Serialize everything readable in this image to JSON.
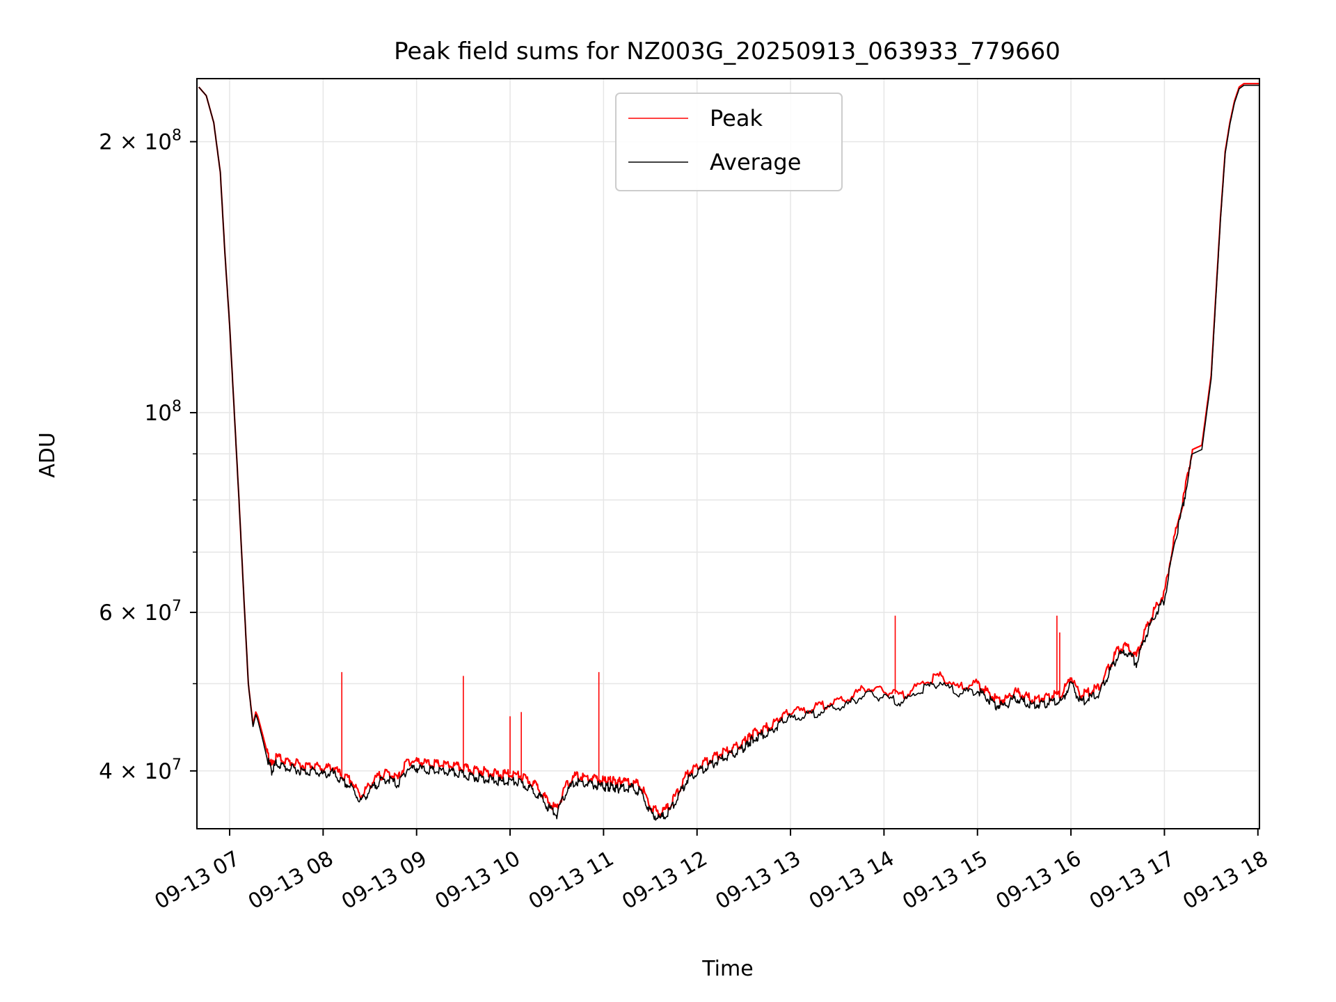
{
  "chart_data": {
    "type": "line",
    "title": "Peak field sums for NZ003G_20250913_063933_779660",
    "xlabel": "Time",
    "ylabel": "ADU",
    "y_scale": "log",
    "ylim": [
      34500000,
      235000000
    ],
    "xlim": [
      "09-13 06:39",
      "09-13 18:01"
    ],
    "grid": true,
    "legend_position": "upper center",
    "x_tick_labels": [
      "09-13 07",
      "09-13 08",
      "09-13 09",
      "09-13 10",
      "09-13 11",
      "09-13 12",
      "09-13 13",
      "09-13 14",
      "09-13 15",
      "09-13 16",
      "09-13 17",
      "09-13 18"
    ],
    "x_tick_hours": [
      7,
      8,
      9,
      10,
      11,
      12,
      13,
      14,
      15,
      16,
      17,
      18
    ],
    "y_tick_labels": [
      {
        "value": 40000000,
        "mantissa": "4",
        "exp": "7"
      },
      {
        "value": 60000000,
        "mantissa": "6",
        "exp": "7"
      },
      {
        "value": 100000000,
        "mantissa": "",
        "exp": "8"
      },
      {
        "value": 200000000,
        "mantissa": "2",
        "exp": "8"
      }
    ],
    "y_minor_ticks": [
      50000000,
      70000000,
      80000000,
      90000000
    ],
    "series": [
      {
        "name": "Peak",
        "color": "#ff0000",
        "x_hours": [
          6.67,
          6.75,
          6.83,
          6.9,
          6.95,
          7.0,
          7.05,
          7.1,
          7.15,
          7.2,
          7.25,
          7.28,
          7.3,
          7.35,
          7.4,
          7.45,
          7.5,
          7.6,
          7.7,
          7.8,
          7.9,
          8.0,
          8.1,
          8.2,
          8.3,
          8.4,
          8.5,
          8.6,
          8.7,
          8.8,
          8.9,
          9.0,
          9.1,
          9.2,
          9.3,
          9.4,
          9.5,
          9.6,
          9.7,
          9.8,
          9.9,
          10.0,
          10.1,
          10.2,
          10.3,
          10.4,
          10.5,
          10.6,
          10.7,
          10.8,
          10.9,
          11.0,
          11.05,
          11.1,
          11.15,
          11.2,
          11.3,
          11.4,
          11.5,
          11.6,
          11.7,
          11.8,
          11.9,
          12.0,
          12.1,
          12.2,
          12.3,
          12.4,
          12.5,
          12.55,
          12.6,
          12.7,
          12.8,
          12.9,
          13.0,
          13.2,
          13.4,
          13.6,
          13.8,
          14.0,
          14.2,
          14.4,
          14.6,
          14.8,
          15.0,
          15.1,
          15.2,
          15.3,
          15.4,
          15.5,
          15.6,
          15.7,
          15.8,
          15.9,
          16.0,
          16.1,
          16.2,
          16.3,
          16.4,
          16.5,
          16.6,
          16.7,
          16.8,
          16.9,
          17.0,
          17.1,
          17.2,
          17.3,
          17.4,
          17.5,
          17.55,
          17.6,
          17.65,
          17.7,
          17.75,
          17.8,
          17.85,
          17.9,
          17.95,
          18.0,
          18.02
        ],
        "values": [
          230000000,
          225000000,
          210000000,
          185000000,
          150000000,
          125000000,
          100000000,
          80000000,
          63000000,
          50000000,
          45000000,
          46500000,
          46000000,
          44000000,
          42000000,
          40500000,
          41500000,
          41000000,
          40800000,
          40500000,
          40600000,
          40200000,
          40400000,
          39500000,
          39000000,
          37500000,
          38600000,
          39500000,
          39800000,
          39200000,
          41000000,
          41000000,
          40800000,
          40700000,
          40600000,
          40500000,
          40300000,
          40100000,
          40000000,
          39800000,
          39600000,
          39700000,
          39500000,
          39000000,
          38400000,
          37000000,
          36300000,
          38500000,
          39500000,
          39300000,
          39200000,
          39000000,
          39000000,
          39000000,
          38800000,
          39000000,
          38900000,
          38500000,
          36500000,
          35900000,
          36500000,
          38000000,
          39800000,
          40500000,
          41000000,
          41500000,
          42000000,
          42400000,
          43000000,
          43600000,
          44000000,
          44500000,
          45000000,
          46000000,
          46500000,
          46800000,
          47500000,
          48000000,
          49500000,
          49000000,
          48500000,
          50000000,
          51000000,
          49500000,
          50000000,
          49000000,
          48000000,
          48000000,
          49000000,
          48500000,
          48000000,
          48200000,
          48500000,
          48600000,
          51000000,
          48500000,
          49000000,
          49500000,
          52000000,
          54500000,
          55000000,
          53500000,
          57500000,
          60500000,
          63000000,
          72000000,
          80000000,
          91000000,
          92000000,
          110000000,
          135000000,
          165000000,
          195000000,
          210000000,
          222000000,
          230000000,
          232000000,
          232000000,
          232000000,
          232000000,
          232000000
        ],
        "spikes": [
          {
            "x_hour": 8.2,
            "value": 51500000
          },
          {
            "x_hour": 9.5,
            "value": 51000000
          },
          {
            "x_hour": 10.0,
            "value": 46000000
          },
          {
            "x_hour": 10.12,
            "value": 46500000
          },
          {
            "x_hour": 10.95,
            "value": 51500000
          },
          {
            "x_hour": 14.12,
            "value": 59500000
          },
          {
            "x_hour": 15.85,
            "value": 59500000
          },
          {
            "x_hour": 15.88,
            "value": 57000000
          }
        ]
      },
      {
        "name": "Average",
        "color": "#000000",
        "x_hours": [
          6.67,
          6.75,
          6.83,
          6.9,
          6.95,
          7.0,
          7.05,
          7.1,
          7.15,
          7.2,
          7.25,
          7.28,
          7.3,
          7.35,
          7.4,
          7.45,
          7.5,
          7.6,
          7.7,
          7.8,
          7.9,
          8.0,
          8.1,
          8.2,
          8.3,
          8.4,
          8.5,
          8.6,
          8.7,
          8.8,
          8.9,
          9.0,
          9.1,
          9.2,
          9.3,
          9.4,
          9.5,
          9.6,
          9.7,
          9.8,
          9.9,
          10.0,
          10.1,
          10.2,
          10.3,
          10.4,
          10.5,
          10.6,
          10.7,
          10.8,
          10.9,
          11.0,
          11.05,
          11.1,
          11.15,
          11.2,
          11.3,
          11.4,
          11.5,
          11.6,
          11.7,
          11.8,
          11.9,
          12.0,
          12.1,
          12.2,
          12.3,
          12.4,
          12.5,
          12.55,
          12.6,
          12.7,
          12.8,
          12.9,
          13.0,
          13.2,
          13.4,
          13.6,
          13.8,
          14.0,
          14.2,
          14.4,
          14.6,
          14.8,
          15.0,
          15.1,
          15.2,
          15.3,
          15.4,
          15.5,
          15.6,
          15.7,
          15.8,
          15.9,
          16.0,
          16.1,
          16.2,
          16.3,
          16.4,
          16.5,
          16.6,
          16.7,
          16.8,
          16.9,
          17.0,
          17.1,
          17.2,
          17.3,
          17.4,
          17.5,
          17.55,
          17.6,
          17.65,
          17.7,
          17.75,
          17.8,
          17.85,
          17.9,
          17.95,
          18.0,
          18.02
        ],
        "values": [
          230000000,
          225000000,
          210000000,
          185000000,
          150000000,
          125000000,
          100000000,
          80000000,
          63000000,
          50000000,
          44800000,
          46200000,
          45600000,
          43500000,
          41300000,
          40000000,
          40800000,
          40300000,
          40200000,
          39900000,
          40000000,
          39600000,
          39800000,
          38900000,
          38400000,
          37000000,
          38000000,
          38900000,
          39200000,
          38600000,
          40200000,
          40300000,
          40100000,
          40000000,
          39900000,
          39800000,
          39600000,
          39400000,
          39300000,
          39100000,
          38900000,
          39000000,
          38800000,
          38300000,
          37700000,
          36500000,
          35800000,
          37900000,
          38900000,
          38700000,
          38600000,
          38400000,
          38400000,
          38400000,
          38200000,
          38400000,
          38300000,
          37900000,
          36000000,
          35400000,
          36000000,
          37500000,
          39200000,
          39900000,
          40400000,
          40900000,
          41400000,
          41800000,
          42400000,
          43000000,
          43400000,
          43900000,
          44300000,
          45300000,
          45800000,
          46100000,
          46800000,
          47300000,
          48700000,
          48200000,
          47700000,
          49200000,
          50200000,
          48700000,
          49200000,
          48200000,
          47300000,
          47300000,
          48200000,
          47700000,
          47300000,
          47500000,
          47700000,
          47800000,
          50200000,
          47700000,
          48200000,
          48700000,
          51200000,
          53600000,
          54200000,
          52700000,
          56600000,
          59600000,
          62000000,
          71000000,
          79000000,
          90000000,
          91000000,
          109000000,
          134000000,
          164000000,
          194000000,
          209000000,
          221000000,
          229000000,
          231000000,
          231000000,
          231000000,
          231000000,
          231000000
        ]
      }
    ]
  }
}
